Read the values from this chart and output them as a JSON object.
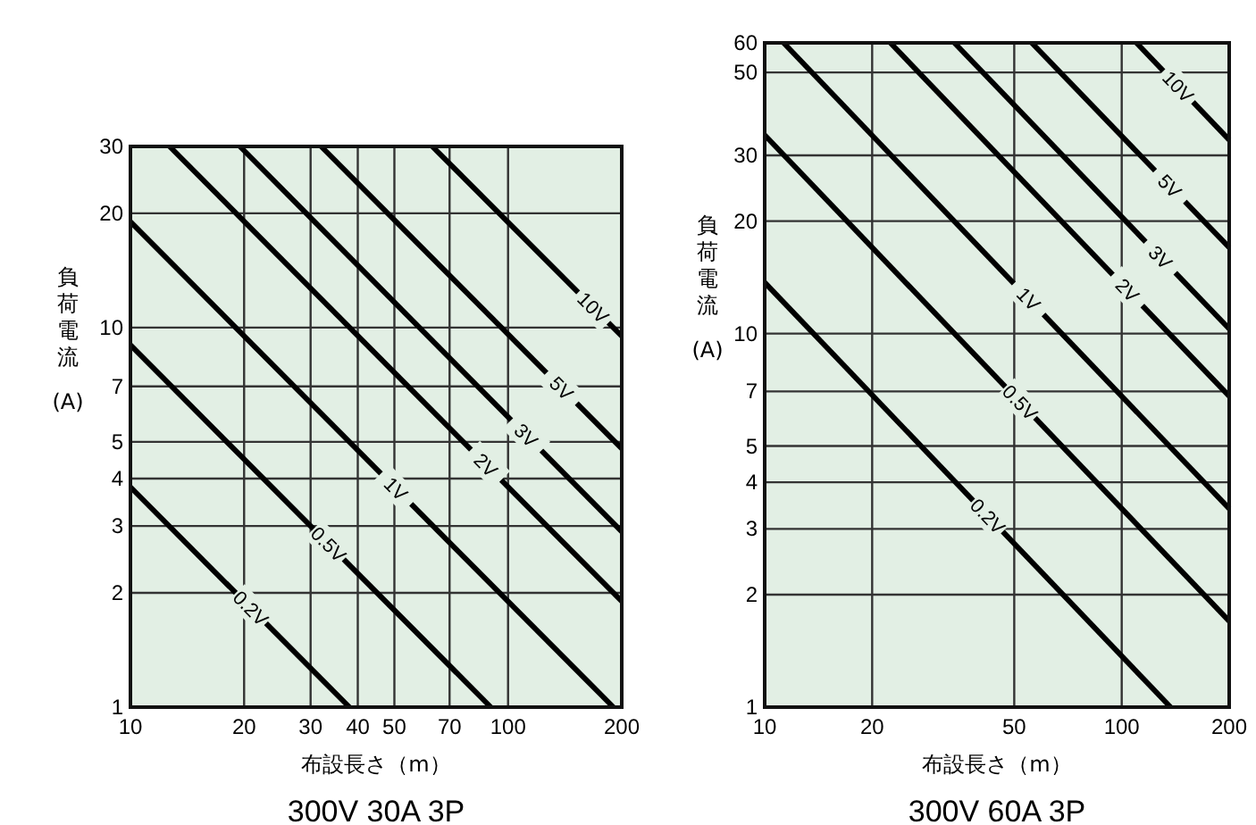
{
  "chart_data": [
    {
      "type": "line",
      "title": "300V 30A 3P",
      "xlabel": "布設長さ（m）",
      "ylabel": "負荷電流(A)",
      "log": "xy",
      "grid": true,
      "marker": "none",
      "line_style": "solid",
      "xlim": [
        10,
        200
      ],
      "ylim": [
        1,
        30
      ],
      "xticks": [
        10,
        20,
        30,
        40,
        50,
        70,
        100,
        200
      ],
      "yticks": [
        1,
        2,
        3,
        4,
        5,
        7,
        10,
        20,
        30
      ],
      "series": [
        {
          "name": "0.2V",
          "color": "#000000",
          "x": [
            10,
            38
          ],
          "values": [
            3.8,
            1
          ]
        },
        {
          "name": "0.5V",
          "color": "#000000",
          "x": [
            10,
            90
          ],
          "values": [
            9,
            1
          ]
        },
        {
          "name": "1V",
          "color": "#000000",
          "x": [
            10,
            190
          ],
          "values": [
            19,
            1
          ]
        },
        {
          "name": "2V",
          "color": "#000000",
          "x": [
            12.7,
            200
          ],
          "values": [
            30,
            1.9
          ]
        },
        {
          "name": "3V",
          "color": "#000000",
          "x": [
            19.5,
            200
          ],
          "values": [
            30,
            2.9
          ]
        },
        {
          "name": "5V",
          "color": "#000000",
          "x": [
            32,
            200
          ],
          "values": [
            30,
            4.8
          ]
        },
        {
          "name": "10V",
          "color": "#000000",
          "x": [
            63,
            200
          ],
          "values": [
            30,
            9.5
          ]
        }
      ]
    },
    {
      "type": "line",
      "title": "300V 60A 3P",
      "xlabel": "布設長さ（m）",
      "ylabel": "負荷電流(A)",
      "log": "xy",
      "grid": true,
      "marker": "none",
      "line_style": "solid",
      "xlim": [
        10,
        200
      ],
      "ylim": [
        1,
        60
      ],
      "xticks": [
        10,
        20,
        50,
        100,
        200
      ],
      "yticks": [
        1,
        2,
        3,
        4,
        5,
        7,
        10,
        20,
        30,
        50,
        60
      ],
      "series": [
        {
          "name": "0.2V",
          "color": "#000000",
          "x": [
            10,
            137
          ],
          "values": [
            13.7,
            1
          ]
        },
        {
          "name": "0.5V",
          "color": "#000000",
          "x": [
            10,
            200
          ],
          "values": [
            34,
            1.7
          ]
        },
        {
          "name": "1V",
          "color": "#000000",
          "x": [
            11.3,
            200
          ],
          "values": [
            60,
            3.4
          ]
        },
        {
          "name": "2V",
          "color": "#000000",
          "x": [
            22.5,
            200
          ],
          "values": [
            60,
            6.8
          ]
        },
        {
          "name": "3V",
          "color": "#000000",
          "x": [
            34,
            200
          ],
          "values": [
            60,
            10.3
          ]
        },
        {
          "name": "5V",
          "color": "#000000",
          "x": [
            56,
            200
          ],
          "values": [
            60,
            17
          ]
        },
        {
          "name": "10V",
          "color": "#000000",
          "x": [
            110,
            200
          ],
          "values": [
            60,
            33
          ]
        }
      ]
    }
  ]
}
